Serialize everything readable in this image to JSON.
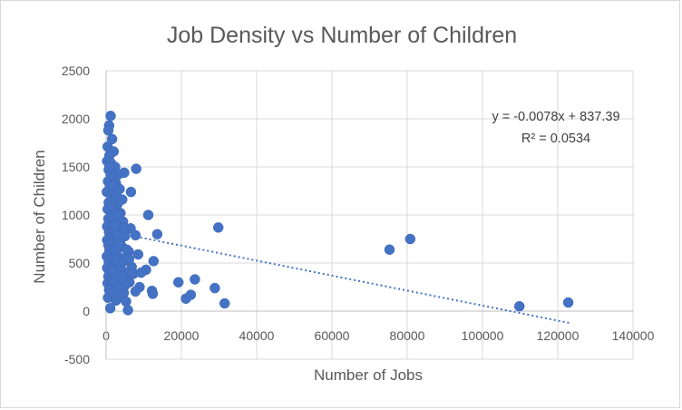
{
  "chart_data": {
    "type": "scatter",
    "title": "Job Density vs Number of Children",
    "xlabel": "Number of Jobs",
    "ylabel": "Number of Children",
    "xlim": [
      0,
      140000
    ],
    "ylim": [
      -500,
      2500
    ],
    "xticks": [
      0,
      20000,
      40000,
      60000,
      80000,
      100000,
      120000,
      140000
    ],
    "yticks": [
      -500,
      0,
      500,
      1000,
      1500,
      2000,
      2500
    ],
    "xtick_labels": [
      "0",
      "20000",
      "40000",
      "60000",
      "80000",
      "100000",
      "120000",
      "140000"
    ],
    "ytick_labels": [
      "-500",
      "0",
      "500",
      "1000",
      "1500",
      "2000",
      "2500"
    ],
    "grid": "horizontal-and-vertical",
    "marker_color": "#4472c4",
    "trendline_color": "#4472c4",
    "trendline": {
      "type": "linear",
      "slope": -0.0078,
      "intercept": 837.39,
      "x_range": [
        2000,
        123000
      ],
      "equation": "y = -0.0078x + 837.39",
      "r_squared": "R² = 0.0534"
    },
    "series": [
      {
        "points": [
          [
            1200,
            2030
          ],
          [
            800,
            1930
          ],
          [
            600,
            1880
          ],
          [
            1600,
            1790
          ],
          [
            400,
            1710
          ],
          [
            2000,
            1660
          ],
          [
            900,
            1620
          ],
          [
            300,
            1560
          ],
          [
            1300,
            1540
          ],
          [
            2400,
            1500
          ],
          [
            700,
            1470
          ],
          [
            8000,
            1480
          ],
          [
            4800,
            1440
          ],
          [
            3200,
            1420
          ],
          [
            1800,
            1380
          ],
          [
            500,
            1350
          ],
          [
            2600,
            1330
          ],
          [
            1000,
            1300
          ],
          [
            3600,
            1270
          ],
          [
            200,
            1240
          ],
          [
            6600,
            1240
          ],
          [
            1500,
            1210
          ],
          [
            2300,
            1180
          ],
          [
            4300,
            1160
          ],
          [
            700,
            1130
          ],
          [
            3000,
            1110
          ],
          [
            1700,
            1090
          ],
          [
            400,
            1060
          ],
          [
            2200,
            1040
          ],
          [
            3800,
            1020
          ],
          [
            11200,
            1000
          ],
          [
            1200,
            980
          ],
          [
            600,
            960
          ],
          [
            2800,
            950
          ],
          [
            4500,
            930
          ],
          [
            1900,
            900
          ],
          [
            300,
            880
          ],
          [
            3400,
            870
          ],
          [
            6500,
            860
          ],
          [
            29800,
            870
          ],
          [
            1400,
            840
          ],
          [
            800,
            820
          ],
          [
            2600,
            810
          ],
          [
            7800,
            790
          ],
          [
            13600,
            800
          ],
          [
            5000,
            780
          ],
          [
            1000,
            760
          ],
          [
            300,
            740
          ],
          [
            2100,
            730
          ],
          [
            3700,
            710
          ],
          [
            80800,
            750
          ],
          [
            600,
            690
          ],
          [
            1600,
            680
          ],
          [
            4200,
            670
          ],
          [
            2900,
            650
          ],
          [
            900,
            640
          ],
          [
            75300,
            640
          ],
          [
            6000,
            620
          ],
          [
            1300,
            610
          ],
          [
            2300,
            590
          ],
          [
            8500,
            590
          ],
          [
            200,
            570
          ],
          [
            3500,
            560
          ],
          [
            5200,
            550
          ],
          [
            1100,
            540
          ],
          [
            12600,
            520
          ],
          [
            700,
            510
          ],
          [
            2700,
            500
          ],
          [
            4000,
            490
          ],
          [
            1500,
            470
          ],
          [
            6800,
            460
          ],
          [
            300,
            450
          ],
          [
            2000,
            440
          ],
          [
            10600,
            430
          ],
          [
            3300,
            420
          ],
          [
            900,
            410
          ],
          [
            5600,
            400
          ],
          [
            7300,
            390
          ],
          [
            1800,
            380
          ],
          [
            4400,
            370
          ],
          [
            600,
            360
          ],
          [
            2500,
            350
          ],
          [
            23600,
            330
          ],
          [
            3900,
            320
          ],
          [
            1200,
            310
          ],
          [
            6200,
            300
          ],
          [
            19200,
            300
          ],
          [
            400,
            290
          ],
          [
            2900,
            280
          ],
          [
            5100,
            270
          ],
          [
            1600,
            260
          ],
          [
            8900,
            250
          ],
          [
            28900,
            240
          ],
          [
            3600,
            230
          ],
          [
            800,
            220
          ],
          [
            12200,
            210
          ],
          [
            7800,
            205
          ],
          [
            2200,
            200
          ],
          [
            4700,
            190
          ],
          [
            12400,
            180
          ],
          [
            22500,
            170
          ],
          [
            1300,
            160
          ],
          [
            3400,
            150
          ],
          [
            500,
            140
          ],
          [
            21200,
            130
          ],
          [
            2600,
            110
          ],
          [
            5300,
            100
          ],
          [
            31500,
            80
          ],
          [
            122800,
            90
          ],
          [
            109800,
            50
          ],
          [
            1100,
            30
          ],
          [
            5800,
            10
          ],
          [
            1500,
            330
          ],
          [
            2400,
            620
          ],
          [
            3100,
            780
          ],
          [
            1900,
            980
          ],
          [
            2700,
            1200
          ],
          [
            1500,
            1100
          ],
          [
            2500,
            900
          ],
          [
            3000,
            540
          ],
          [
            4800,
            860
          ],
          [
            5500,
            640
          ],
          [
            3800,
            460
          ],
          [
            1000,
            220
          ],
          [
            7000,
            390
          ],
          [
            9300,
            400
          ],
          [
            2000,
            1300
          ],
          [
            1200,
            1420
          ],
          [
            3300,
            1000
          ],
          [
            4600,
            520
          ],
          [
            2100,
            300
          ],
          [
            3400,
            700
          ],
          [
            900,
            1500
          ],
          [
            6100,
            540
          ],
          [
            1700,
            430
          ]
        ]
      }
    ]
  }
}
